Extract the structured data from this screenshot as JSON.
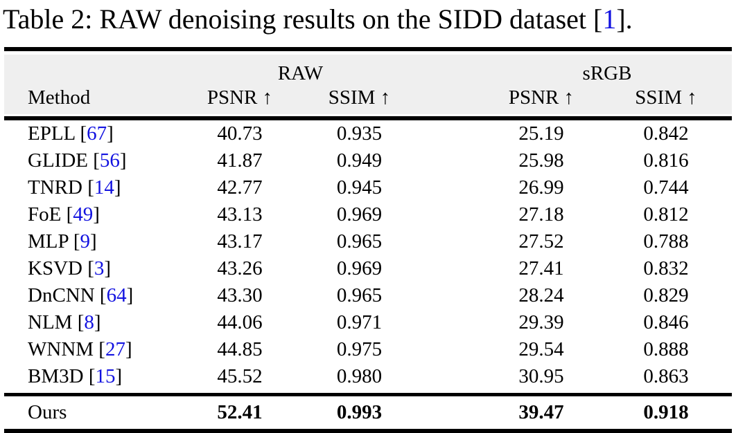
{
  "colors": {
    "citation_blue": "#1212e0",
    "header_bg": "#efefef",
    "rule_black": "#000000",
    "text_black": "#000000",
    "page_bg": "#ffffff"
  },
  "caption": {
    "prefix": "Table 2: RAW denoising results on the SIDD dataset [",
    "citation": "1",
    "suffix": "]."
  },
  "table": {
    "cite_open": " [",
    "cite_close": "]",
    "group_headers": [
      {
        "label": "RAW"
      },
      {
        "label": "sRGB"
      }
    ],
    "column_headers": {
      "method": "Method",
      "raw_psnr": "PSNR ↑",
      "raw_ssim": "SSIM ↑",
      "srgb_psnr": "PSNR ↑",
      "srgb_ssim": "SSIM ↑"
    },
    "rows": [
      {
        "method": "EPLL",
        "cite": "67",
        "raw_psnr": "40.73",
        "raw_ssim": "0.935",
        "srgb_psnr": "25.19",
        "srgb_ssim": "0.842"
      },
      {
        "method": "GLIDE",
        "cite": "56",
        "raw_psnr": "41.87",
        "raw_ssim": "0.949",
        "srgb_psnr": "25.98",
        "srgb_ssim": "0.816"
      },
      {
        "method": "TNRD",
        "cite": "14",
        "raw_psnr": "42.77",
        "raw_ssim": "0.945",
        "srgb_psnr": "26.99",
        "srgb_ssim": "0.744"
      },
      {
        "method": "FoE",
        "cite": "49",
        "raw_psnr": "43.13",
        "raw_ssim": "0.969",
        "srgb_psnr": "27.18",
        "srgb_ssim": "0.812"
      },
      {
        "method": "MLP",
        "cite": "9",
        "raw_psnr": "43.17",
        "raw_ssim": "0.965",
        "srgb_psnr": "27.52",
        "srgb_ssim": "0.788"
      },
      {
        "method": "KSVD",
        "cite": "3",
        "raw_psnr": "43.26",
        "raw_ssim": "0.969",
        "srgb_psnr": "27.41",
        "srgb_ssim": "0.832"
      },
      {
        "method": "DnCNN",
        "cite": "64",
        "raw_psnr": "43.30",
        "raw_ssim": "0.965",
        "srgb_psnr": "28.24",
        "srgb_ssim": "0.829"
      },
      {
        "method": "NLM",
        "cite": "8",
        "raw_psnr": "44.06",
        "raw_ssim": "0.971",
        "srgb_psnr": "29.39",
        "srgb_ssim": "0.846"
      },
      {
        "method": "WNNM",
        "cite": "27",
        "raw_psnr": "44.85",
        "raw_ssim": "0.975",
        "srgb_psnr": "29.54",
        "srgb_ssim": "0.888"
      },
      {
        "method": "BM3D",
        "cite": "15",
        "raw_psnr": "45.52",
        "raw_ssim": "0.980",
        "srgb_psnr": "30.95",
        "srgb_ssim": "0.863"
      }
    ],
    "ours": {
      "method": "Ours",
      "raw_psnr": "52.41",
      "raw_ssim": "0.993",
      "srgb_psnr": "39.47",
      "srgb_ssim": "0.918"
    }
  }
}
